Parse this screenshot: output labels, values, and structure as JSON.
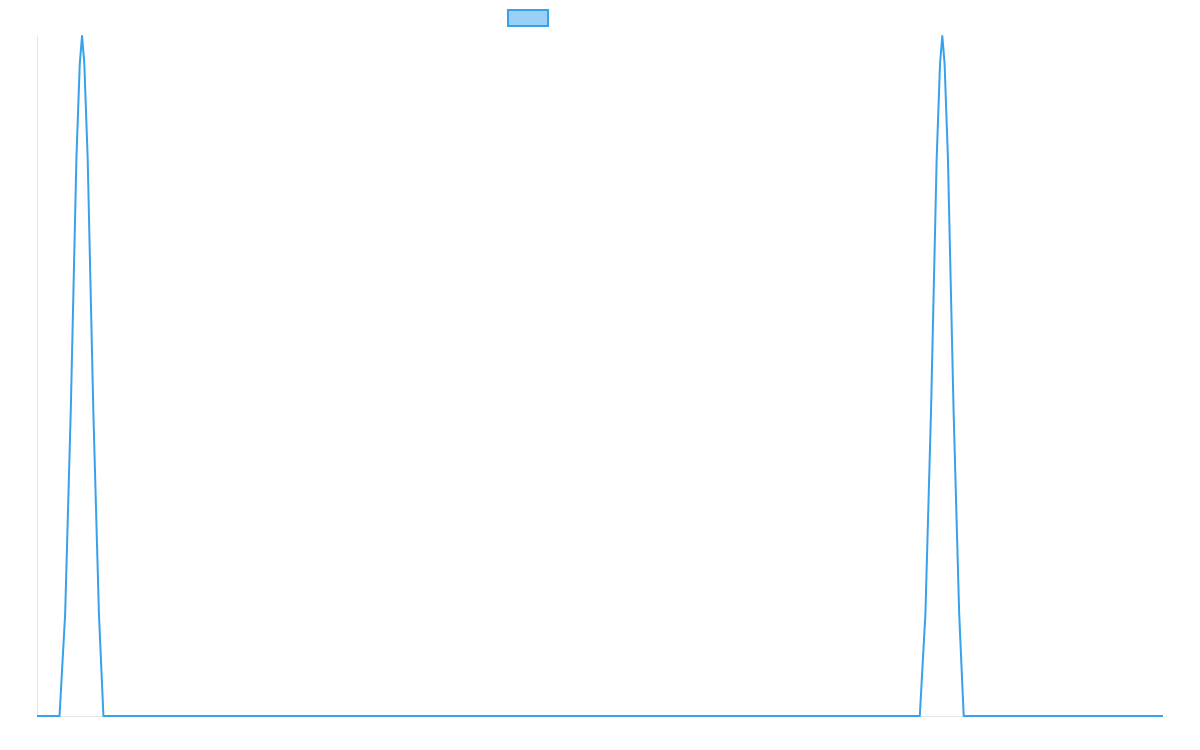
{
  "chart_data": {
    "type": "line",
    "title": "",
    "xlabel": "",
    "ylabel": "",
    "xlim": [
      0,
      1
    ],
    "ylim": [
      0,
      1
    ],
    "grid": false,
    "legend_placement": "top-center",
    "series": [
      {
        "color": "#36a2eb",
        "fill_color": "#9ad0f5",
        "points": [
          {
            "x": 0.0,
            "y": 0
          },
          {
            "x": 0.02,
            "y": 0
          },
          {
            "x": 0.025,
            "y": 0.15
          },
          {
            "x": 0.03,
            "y": 0.45
          },
          {
            "x": 0.035,
            "y": 0.82
          },
          {
            "x": 0.038,
            "y": 0.96
          },
          {
            "x": 0.04,
            "y": 1.0
          },
          {
            "x": 0.042,
            "y": 0.96
          },
          {
            "x": 0.045,
            "y": 0.82
          },
          {
            "x": 0.05,
            "y": 0.45
          },
          {
            "x": 0.055,
            "y": 0.15
          },
          {
            "x": 0.059,
            "y": 0
          },
          {
            "x": 0.784,
            "y": 0
          },
          {
            "x": 0.789,
            "y": 0.15
          },
          {
            "x": 0.794,
            "y": 0.45
          },
          {
            "x": 0.799,
            "y": 0.82
          },
          {
            "x": 0.802,
            "y": 0.96
          },
          {
            "x": 0.804,
            "y": 1.0
          },
          {
            "x": 0.806,
            "y": 0.96
          },
          {
            "x": 0.809,
            "y": 0.82
          },
          {
            "x": 0.814,
            "y": 0.45
          },
          {
            "x": 0.819,
            "y": 0.15
          },
          {
            "x": 0.823,
            "y": 0
          },
          {
            "x": 1.0,
            "y": 0
          }
        ]
      }
    ]
  }
}
